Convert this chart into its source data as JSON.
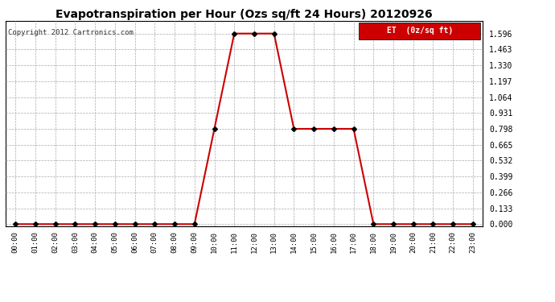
{
  "title": "Evapotranspiration per Hour (Ozs sq/ft 24 Hours) 20120926",
  "copyright": "Copyright 2012 Cartronics.com",
  "legend_label": "ET  (0z/sq ft)",
  "line_color": "#cc0000",
  "marker": "D",
  "marker_color": "#000000",
  "marker_size": 3,
  "background_color": "#ffffff",
  "grid_color": "#aaaaaa",
  "legend_bg": "#cc0000",
  "legend_text_color": "#ffffff",
  "hours": [
    0,
    1,
    2,
    3,
    4,
    5,
    6,
    7,
    8,
    9,
    10,
    11,
    12,
    13,
    14,
    15,
    16,
    17,
    18,
    19,
    20,
    21,
    22,
    23
  ],
  "values": [
    0.0,
    0.0,
    0.0,
    0.0,
    0.0,
    0.0,
    0.0,
    0.0,
    0.0,
    0.0,
    0.798,
    1.596,
    1.596,
    1.596,
    0.798,
    0.798,
    0.798,
    0.798,
    0.0,
    0.0,
    0.0,
    0.0,
    0.0,
    0.0
  ],
  "yticks": [
    0.0,
    0.133,
    0.266,
    0.399,
    0.532,
    0.665,
    0.798,
    0.931,
    1.064,
    1.197,
    1.33,
    1.463,
    1.596
  ],
  "xlim": [
    -0.5,
    23.5
  ],
  "ylim": [
    -0.02,
    1.7
  ]
}
